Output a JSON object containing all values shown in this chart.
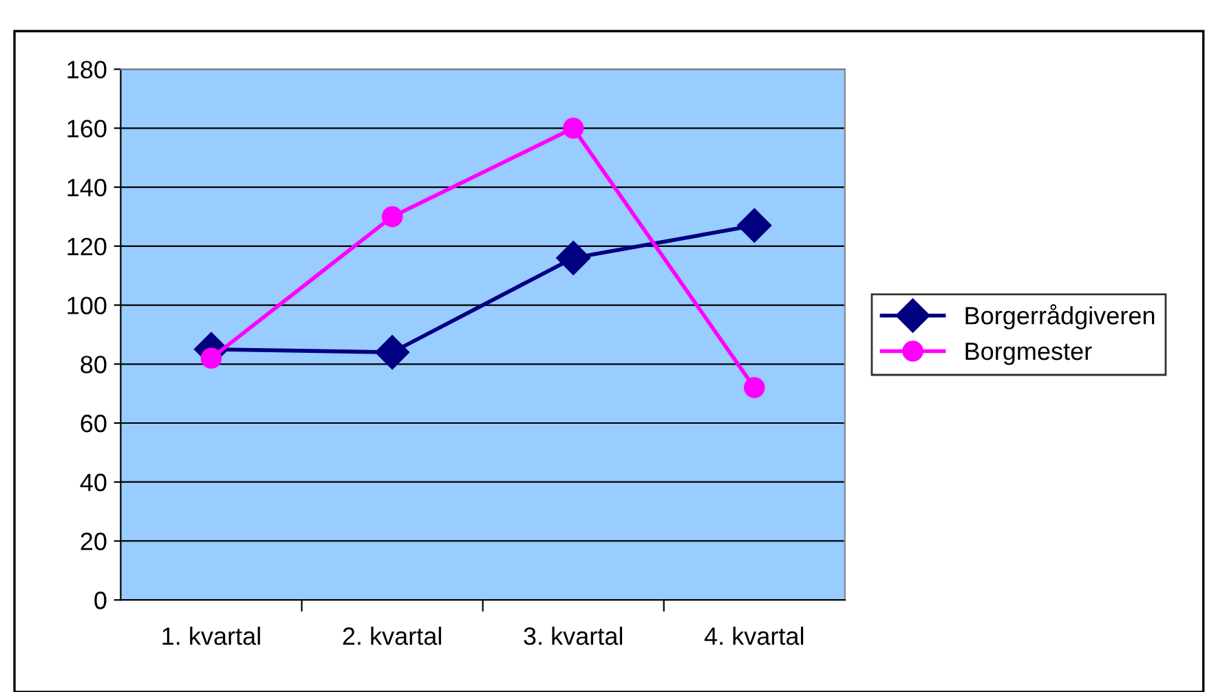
{
  "chart_data": {
    "type": "line",
    "categories": [
      "1. kvartal",
      "2. kvartal",
      "3. kvartal",
      "4. kvartal"
    ],
    "series": [
      {
        "name": "Borgerrådgiveren",
        "color": "#000080",
        "marker": "diamond",
        "values": [
          85,
          84,
          116,
          127
        ]
      },
      {
        "name": "Borgmester",
        "color": "#ff00ff",
        "marker": "circle",
        "values": [
          82,
          130,
          160,
          72
        ]
      }
    ],
    "ylim": [
      0,
      180
    ],
    "yticks": [
      0,
      20,
      40,
      60,
      80,
      100,
      120,
      140,
      160,
      180
    ],
    "grid": "y",
    "legend": "right",
    "line_style": "solid"
  }
}
